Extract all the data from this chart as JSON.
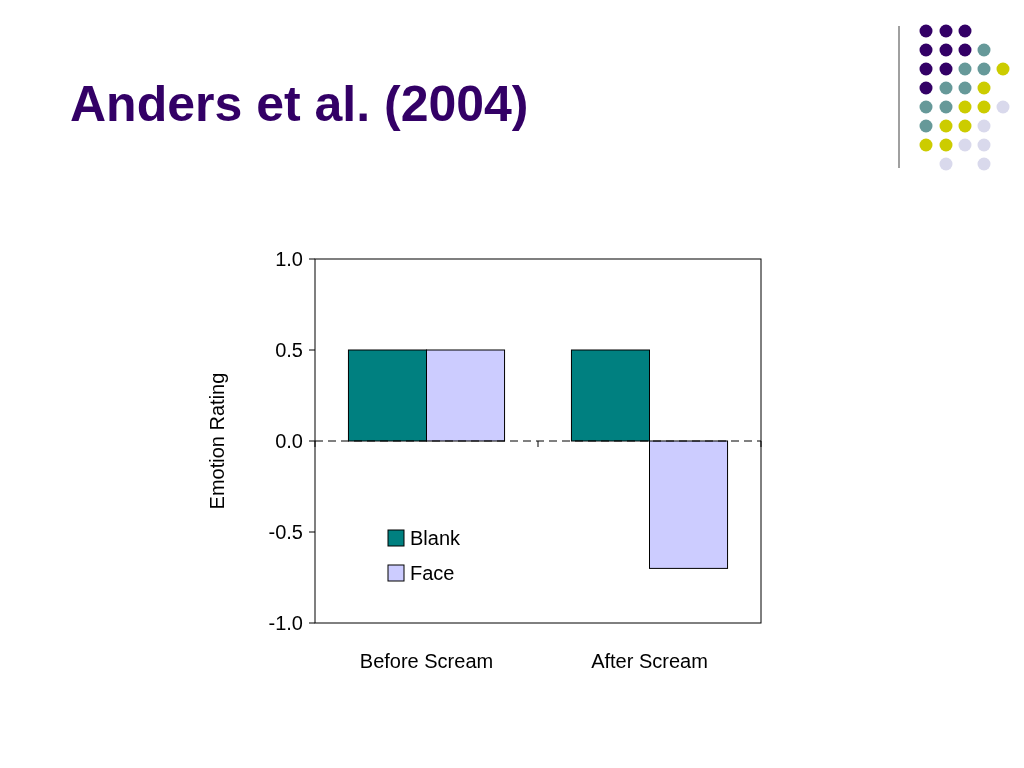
{
  "chart_data": {
    "type": "bar",
    "title": "Anders et al. (2004)",
    "ylabel": "Emotion Rating",
    "categories": [
      "Before Scream",
      "After Scream"
    ],
    "series": [
      {
        "name": "Blank",
        "color": "#008080",
        "values": [
          0.5,
          0.5
        ]
      },
      {
        "name": "Face",
        "color": "#ccccff",
        "values": [
          0.5,
          -0.7
        ]
      }
    ],
    "ylim": [
      -1.0,
      1.0
    ],
    "yticks": [
      {
        "value": -1,
        "label": "-1.0"
      },
      {
        "value": -0.5,
        "label": "-0.5"
      },
      {
        "value": 0,
        "label": "0.0"
      },
      {
        "value": 0.5,
        "label": "0.5"
      },
      {
        "value": 1,
        "label": "1.0"
      }
    ],
    "ref_lines": [
      {
        "axis": "y",
        "value": 0,
        "line_style": "dashed",
        "color": "#000000"
      }
    ],
    "grid": false,
    "legend": "bottom left"
  }
}
